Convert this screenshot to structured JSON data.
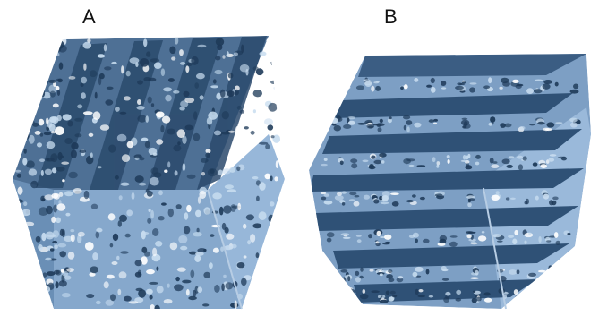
{
  "panels": [
    {
      "label": "A"
    },
    {
      "label": "B"
    }
  ],
  "colors": {
    "background": "#ffffff",
    "face_top": "#4d6f93",
    "face_left": "#6f93bb",
    "face_right": "#8fb0d3",
    "dark": "#1e3a59",
    "highlight": "#c7dcef"
  }
}
